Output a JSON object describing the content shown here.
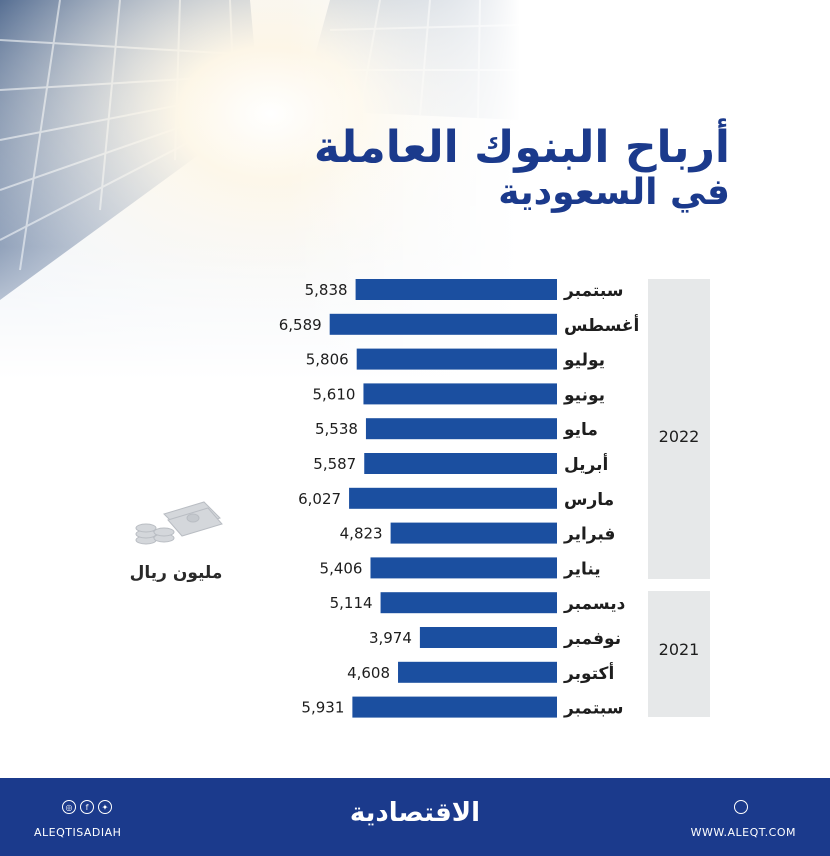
{
  "chart_data": {
    "type": "bar",
    "orientation": "horizontal",
    "title": "أرباح البنوك العاملة",
    "subtitle": "في السعودية",
    "unit": "مليون ريال",
    "categories": [
      "سبتمبر",
      "أغسطس",
      "يوليو",
      "يونيو",
      "مايو",
      "أبريل",
      "مارس",
      "فبراير",
      "يناير",
      "ديسمبر",
      "نوفمبر",
      "أكتوبر",
      "سبتمبر"
    ],
    "values": [
      5838,
      6589,
      5806,
      5610,
      5538,
      5587,
      6027,
      4823,
      5406,
      5114,
      3974,
      4608,
      5931
    ],
    "value_labels": [
      "5,838",
      "6,589",
      "5,806",
      "5,610",
      "5,538",
      "5,587",
      "6,027",
      "4,823",
      "5,406",
      "5,114",
      "3,974",
      "4,608",
      "5,931"
    ],
    "groups": [
      {
        "label": "2022",
        "count": 9
      },
      {
        "label": "2021",
        "count": 4
      }
    ],
    "bar_color": "#1b4fa0",
    "grid": false
  },
  "footer": {
    "logo": "الاقتصادية",
    "social_handle": "ALEQTISADIAH",
    "website": "WWW.ALEQT.COM"
  },
  "colors": {
    "brand_blue": "#1b3a8c",
    "bar_blue": "#1b4fa0",
    "year_band": "#e6e8e9"
  }
}
